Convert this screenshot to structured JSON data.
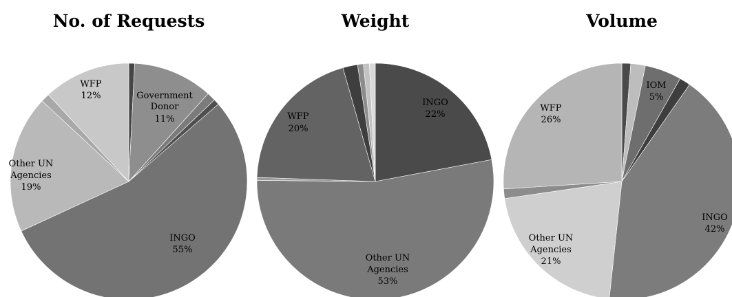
{
  "chart_data": [
    {
      "type": "pie",
      "title": "No. of Requests",
      "slices": [
        {
          "name": "",
          "value": 0.8,
          "color": "#454545"
        },
        {
          "name": "Government Donor",
          "value": 11,
          "color": "#8e8e8e"
        },
        {
          "name": "",
          "value": 1.2,
          "color": "#7b7b7b"
        },
        {
          "name": "",
          "value": 0.8,
          "color": "#4f4f4f"
        },
        {
          "name": "INGO",
          "value": 55,
          "color": "#737373"
        },
        {
          "name": "Other UN Agencies",
          "value": 19,
          "color": "#b9b9b9"
        },
        {
          "name": "",
          "value": 1.2,
          "color": "#a8a8a8"
        },
        {
          "name": "WFP",
          "value": 12,
          "color": "#c8c8c8"
        }
      ],
      "labels": [
        {
          "lines": [
            "Government",
            "Donor",
            "11%"
          ]
        },
        {
          "lines": [
            "INGO",
            "55%"
          ]
        },
        {
          "lines": [
            "Other UN",
            "Agencies",
            "19%"
          ]
        },
        {
          "lines": [
            "WFP",
            "12%"
          ]
        }
      ]
    },
    {
      "type": "pie",
      "title": "Weight",
      "slices": [
        {
          "name": "INGO",
          "value": 22,
          "color": "#4a4a4a"
        },
        {
          "name": "Other UN Agencies",
          "value": 53,
          "color": "#7a7a7a"
        },
        {
          "name": "",
          "value": 0.4,
          "color": "#9a9a9a"
        },
        {
          "name": "WFP",
          "value": 20,
          "color": "#636363"
        },
        {
          "name": "",
          "value": 2,
          "color": "#3e3e3e"
        },
        {
          "name": "",
          "value": 0.8,
          "color": "#8c8c8c"
        },
        {
          "name": "",
          "value": 0.8,
          "color": "#c2c2c2"
        },
        {
          "name": "",
          "value": 0.8,
          "color": "#d9d9d9"
        }
      ],
      "labels": [
        {
          "lines": [
            "INGO",
            "22%"
          ]
        },
        {
          "lines": [
            "Other UN",
            "Agencies",
            "53%"
          ]
        },
        {
          "lines": [
            "WFP",
            "20%"
          ]
        }
      ]
    },
    {
      "type": "pie",
      "title": "Volume",
      "slices": [
        {
          "name": "",
          "value": 1.2,
          "color": "#4a4a4a"
        },
        {
          "name": "",
          "value": 2,
          "color": "#bdbdbd"
        },
        {
          "name": "IOM",
          "value": 5,
          "color": "#6e6e6e"
        },
        {
          "name": "",
          "value": 1.5,
          "color": "#3e3e3e"
        },
        {
          "name": "INGO",
          "value": 42,
          "color": "#7c7c7c"
        },
        {
          "name": "Other UN Agencies",
          "value": 21,
          "color": "#cfcfcf"
        },
        {
          "name": "",
          "value": 1.3,
          "color": "#8c8c8c"
        },
        {
          "name": "WFP",
          "value": 26,
          "color": "#b5b5b5"
        }
      ],
      "labels": [
        {
          "lines": [
            "IOM",
            "5%"
          ]
        },
        {
          "lines": [
            "INGO",
            "42%"
          ]
        },
        {
          "lines": [
            "Other UN",
            "Agencies",
            "21%"
          ]
        },
        {
          "lines": [
            "WFP",
            "26%"
          ]
        }
      ]
    }
  ]
}
